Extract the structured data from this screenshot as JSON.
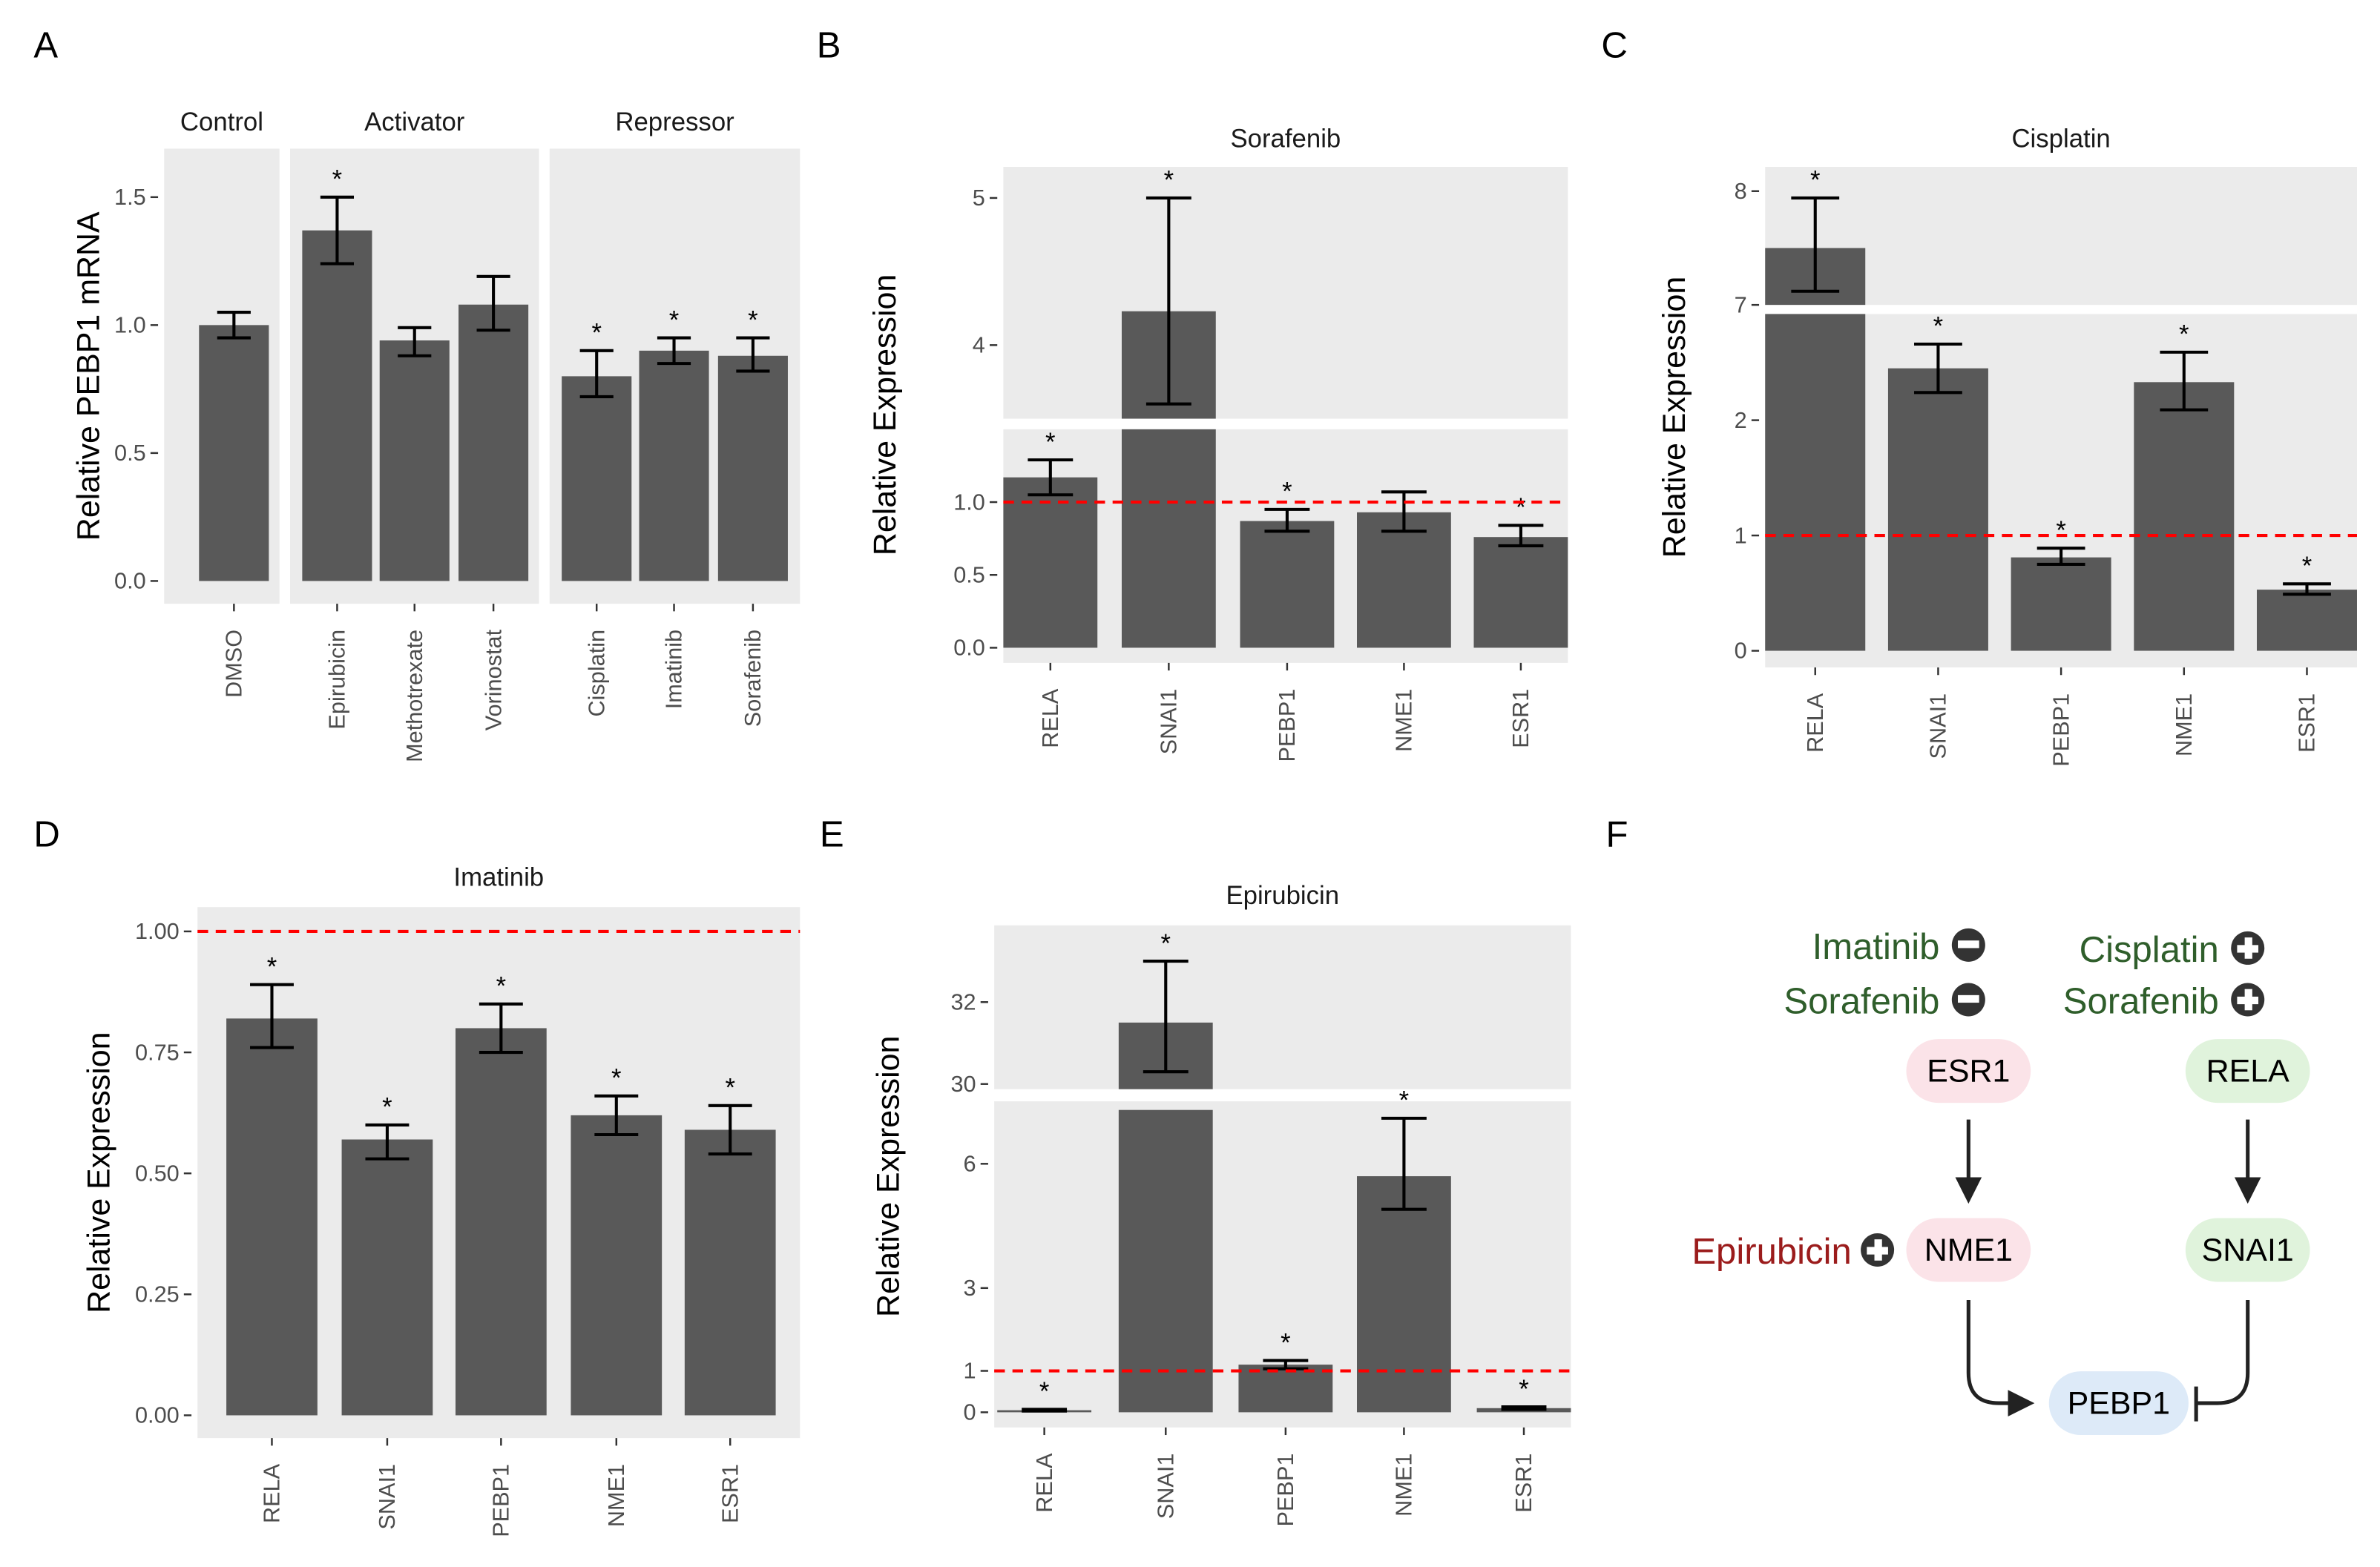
{
  "panel_labels": [
    "A",
    "B",
    "C",
    "D",
    "E",
    "F"
  ],
  "chart_data": [
    {
      "type": "bar",
      "panel": "A",
      "title": "",
      "ylabel": "Relative PEBP1 mRNA",
      "xlabel": "",
      "ylim": [
        0,
        1.6
      ],
      "yticks": [
        {
          "v": 0,
          "label": "0.0"
        },
        {
          "v": 0.5,
          "label": "0.5"
        },
        {
          "v": 1.0,
          "label": "1.0"
        },
        {
          "v": 1.5,
          "label": "1.5"
        }
      ],
      "facets": [
        "Control",
        "Activator",
        "Repressor"
      ],
      "categories": [
        "DMSO",
        "Epirubicin",
        "Methotrexate",
        "Vorinostat",
        "Cisplatin",
        "Imatinib",
        "Sorafenib"
      ],
      "facet_of": [
        "Control",
        "Activator",
        "Activator",
        "Activator",
        "Repressor",
        "Repressor",
        "Repressor"
      ],
      "values": [
        1.0,
        1.37,
        0.94,
        1.08,
        0.8,
        0.9,
        0.88
      ],
      "err_low": [
        0.95,
        1.24,
        0.88,
        0.98,
        0.72,
        0.85,
        0.82
      ],
      "err_high": [
        1.05,
        1.5,
        0.99,
        1.19,
        0.9,
        0.95,
        0.95
      ],
      "significant": [
        false,
        true,
        false,
        false,
        true,
        true,
        true
      ],
      "reference_line": null,
      "grid": false
    },
    {
      "type": "bar",
      "panel": "B",
      "title": "Sorafenib",
      "ylabel": "Relative Expression",
      "ylim": [
        0,
        5.2
      ],
      "axis_break": [
        1.5,
        3.5
      ],
      "yticks": [
        {
          "v": 0,
          "label": "0.0"
        },
        {
          "v": 0.5,
          "label": "0.5"
        },
        {
          "v": 1.0,
          "label": "1.0"
        },
        {
          "v": 4,
          "label": "4"
        },
        {
          "v": 5,
          "label": "5"
        }
      ],
      "categories": [
        "RELA",
        "SNAI1",
        "PEBP1",
        "NME1",
        "ESR1"
      ],
      "values": [
        1.17,
        4.23,
        0.87,
        0.93,
        0.76
      ],
      "err_low": [
        1.05,
        3.6,
        0.8,
        0.8,
        0.7
      ],
      "err_high": [
        1.29,
        5.0,
        0.95,
        1.07,
        0.84
      ],
      "significant": [
        true,
        true,
        true,
        false,
        true
      ],
      "reference_line": 1,
      "grid": false
    },
    {
      "type": "bar",
      "panel": "C",
      "title": "Cisplatin",
      "ylabel": "Relative Expression",
      "ylim": [
        0,
        8.2
      ],
      "axis_break": [
        2.95,
        7.0
      ],
      "yticks": [
        {
          "v": 0,
          "label": "0"
        },
        {
          "v": 1,
          "label": "1"
        },
        {
          "v": 2,
          "label": "2"
        },
        {
          "v": 7,
          "label": "7"
        },
        {
          "v": 8,
          "label": "8"
        }
      ],
      "categories": [
        "RELA",
        "SNAI1",
        "PEBP1",
        "NME1",
        "ESR1"
      ],
      "values": [
        7.5,
        2.45,
        0.81,
        2.33,
        0.53
      ],
      "err_low": [
        7.12,
        2.24,
        0.75,
        2.09,
        0.49
      ],
      "err_high": [
        7.94,
        2.66,
        0.89,
        2.59,
        0.58
      ],
      "significant": [
        true,
        true,
        true,
        true,
        true
      ],
      "reference_line": 1,
      "grid": false
    },
    {
      "type": "bar",
      "panel": "D",
      "title": "Imatinib",
      "ylabel": "Relative Expression",
      "ylim": [
        0,
        1.05
      ],
      "yticks": [
        {
          "v": 0,
          "label": "0.00"
        },
        {
          "v": 0.25,
          "label": "0.25"
        },
        {
          "v": 0.5,
          "label": "0.50"
        },
        {
          "v": 0.75,
          "label": "0.75"
        },
        {
          "v": 1.0,
          "label": "1.00"
        }
      ],
      "categories": [
        "RELA",
        "SNAI1",
        "PEBP1",
        "NME1",
        "ESR1"
      ],
      "values": [
        0.82,
        0.57,
        0.8,
        0.62,
        0.59
      ],
      "err_low": [
        0.76,
        0.53,
        0.75,
        0.58,
        0.54
      ],
      "err_high": [
        0.89,
        0.6,
        0.85,
        0.66,
        0.64
      ],
      "significant": [
        true,
        true,
        true,
        true,
        true
      ],
      "reference_line": 1,
      "grid": false
    },
    {
      "type": "bar",
      "panel": "E",
      "title": "Epirubicin",
      "ylabel": "Relative Expression",
      "ylim": [
        0,
        33.5
      ],
      "axis_break": [
        7.3,
        29.8
      ],
      "yticks": [
        {
          "v": 0,
          "label": "0"
        },
        {
          "v": 1,
          "label": "1"
        },
        {
          "v": 3,
          "label": "3"
        },
        {
          "v": 6,
          "label": "6"
        },
        {
          "v": 30,
          "label": "30"
        },
        {
          "v": 32,
          "label": "32"
        }
      ],
      "categories": [
        "RELA",
        "SNAI1",
        "PEBP1",
        "NME1",
        "ESR1"
      ],
      "values": [
        0.05,
        31.5,
        1.15,
        5.7,
        0.1
      ],
      "err_low": [
        0.03,
        30.3,
        1.05,
        4.9,
        0.07
      ],
      "err_high": [
        0.07,
        33.0,
        1.25,
        7.1,
        0.13
      ],
      "significant": [
        true,
        true,
        true,
        true,
        true
      ],
      "reference_line": 1,
      "grid": false
    }
  ],
  "diagram": {
    "drugs": {
      "imatinib_minus": "Imatinib",
      "sorafenib_minus": "Sorafenib",
      "cisplatin_plus": "Cisplatin",
      "sorafenib_plus": "Sorafenib",
      "epirubicin_plus": "Epirubicin"
    },
    "nodes": {
      "esr1": "ESR1",
      "rela": "RELA",
      "nme1": "NME1",
      "snai1": "SNAI1",
      "pebp1": "PEBP1"
    },
    "colors": {
      "drug_green": "#2f5e2b",
      "drug_red": "#9b1c1c",
      "pink_node": "#fbe3e8",
      "green_node": "#e0f3dc",
      "blue_node": "#ddeaf8",
      "bar": "#595959",
      "panel_bg": "#ebebeb",
      "ref_line": "#ff0000"
    }
  }
}
